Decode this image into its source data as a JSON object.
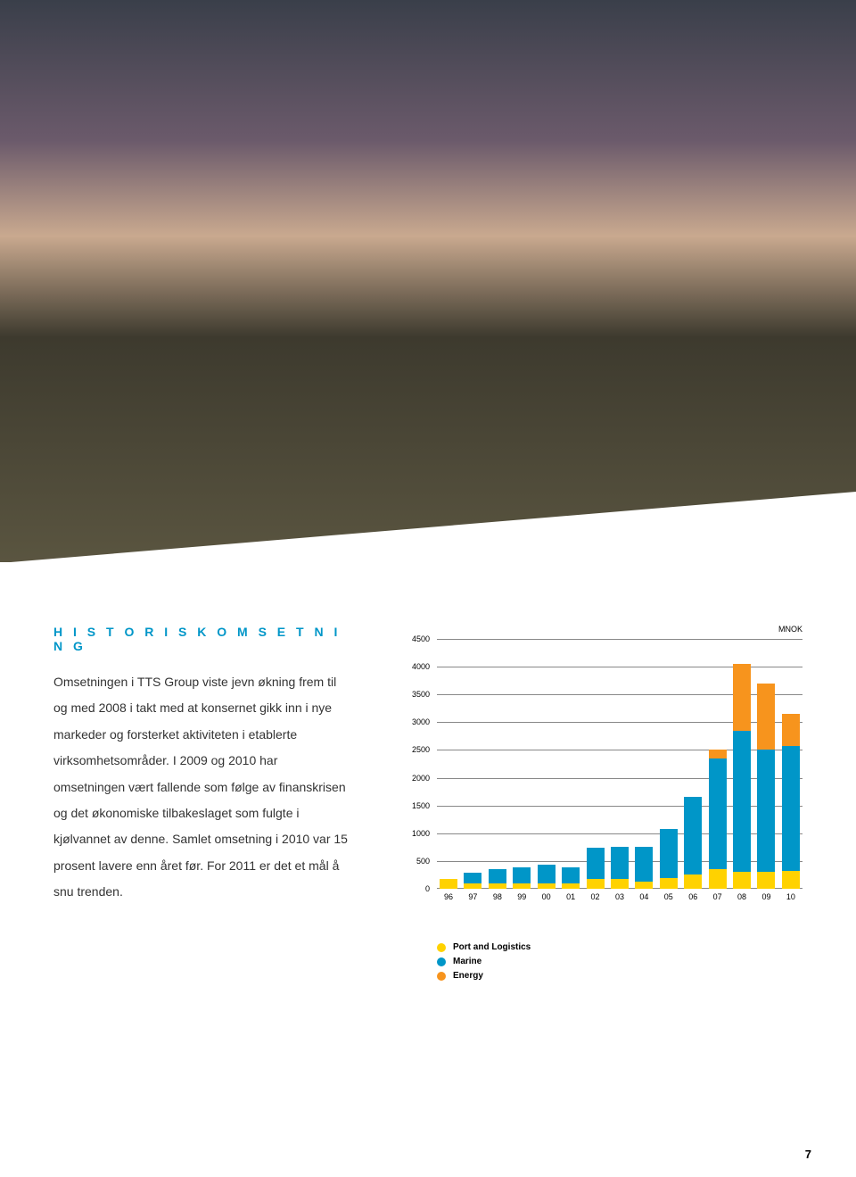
{
  "heading": "H I S T O R I S K  O M S E T N I N G",
  "body_text": "Omsetningen i TTS Group viste jevn økning frem til og med 2008 i takt med at konsernet gikk inn i nye markeder og forsterket aktiviteten i etablerte virksomhetsområder. I 2009 og 2010 har omsetningen vært fallende som følge av finanskrisen og det økonomiske tilbakeslaget som fulgte i kjølvannet av denne. Samlet omsetning i 2010 var 15 prosent lavere enn året før. For 2011 er det et mål å snu trenden.",
  "chart": {
    "type": "stacked-bar",
    "axis_label": "MNOK",
    "ymax": 4500,
    "ytick_step": 500,
    "yticks": [
      "4500",
      "4000",
      "3500",
      "3000",
      "2500",
      "2000",
      "1500",
      "1000",
      "500",
      "0"
    ],
    "x_labels": [
      "96",
      "97",
      "98",
      "99",
      "00",
      "01",
      "02",
      "03",
      "04",
      "05",
      "06",
      "07",
      "08",
      "09",
      "10"
    ],
    "series_colors": {
      "port": "#ffd200",
      "marine": "#0096c8",
      "energy": "#f7941d"
    },
    "data": [
      {
        "port": 180,
        "marine": 0,
        "energy": 0
      },
      {
        "port": 90,
        "marine": 200,
        "energy": 0
      },
      {
        "port": 90,
        "marine": 260,
        "energy": 0
      },
      {
        "port": 90,
        "marine": 300,
        "energy": 0
      },
      {
        "port": 90,
        "marine": 340,
        "energy": 0
      },
      {
        "port": 90,
        "marine": 300,
        "energy": 0
      },
      {
        "port": 170,
        "marine": 570,
        "energy": 0
      },
      {
        "port": 170,
        "marine": 580,
        "energy": 0
      },
      {
        "port": 130,
        "marine": 620,
        "energy": 0
      },
      {
        "port": 200,
        "marine": 870,
        "energy": 0
      },
      {
        "port": 250,
        "marine": 1400,
        "energy": 0
      },
      {
        "port": 350,
        "marine": 2000,
        "energy": 150
      },
      {
        "port": 300,
        "marine": 2550,
        "energy": 1200
      },
      {
        "port": 300,
        "marine": 2200,
        "energy": 1200
      },
      {
        "port": 320,
        "marine": 2250,
        "energy": 580
      }
    ]
  },
  "legend": [
    {
      "label": "Port and Logistics",
      "color": "#ffd200"
    },
    {
      "label": "Marine",
      "color": "#0096c8"
    },
    {
      "label": "Energy",
      "color": "#f7941d"
    }
  ],
  "page_number": "7"
}
